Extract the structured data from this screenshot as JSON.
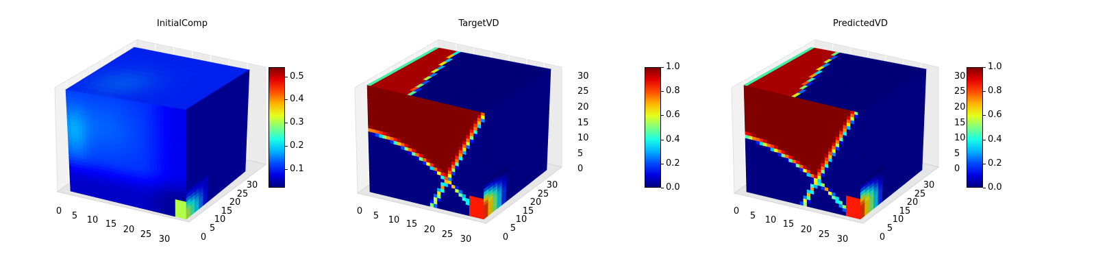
{
  "chart_data": [
    {
      "type": "heatmap",
      "subtype": "3d-voxel",
      "title": "InitialComp",
      "x_ticks": [
        "0",
        "5",
        "10",
        "15",
        "20",
        "25",
        "30"
      ],
      "y_ticks": [
        "0",
        "5",
        "10",
        "15",
        "20",
        "25",
        "30"
      ],
      "z_ticks": [],
      "xlim": [
        0,
        32
      ],
      "ylim": [
        0,
        32
      ],
      "zlim": [
        0,
        32
      ],
      "colormap": "jet",
      "colorbar": {
        "range": [
          0.02,
          0.54
        ],
        "ticks": [
          "0.1",
          "0.2",
          "0.3",
          "0.4",
          "0.5"
        ]
      },
      "pattern": "initial"
    },
    {
      "type": "heatmap",
      "subtype": "3d-voxel",
      "title": "TargetVD",
      "x_ticks": [
        "0",
        "5",
        "10",
        "15",
        "20",
        "25",
        "30"
      ],
      "y_ticks": [
        "0",
        "5",
        "10",
        "15",
        "20",
        "25",
        "30"
      ],
      "z_ticks": [
        "0",
        "5",
        "10",
        "15",
        "20",
        "25",
        "30"
      ],
      "xlim": [
        0,
        32
      ],
      "ylim": [
        0,
        32
      ],
      "zlim": [
        0,
        32
      ],
      "colormap": "jet",
      "colorbar": {
        "range": [
          0.0,
          1.0
        ],
        "ticks": [
          "0.0",
          "0.2",
          "0.4",
          "0.6",
          "0.8",
          "1.0"
        ]
      },
      "pattern": "target"
    },
    {
      "type": "heatmap",
      "subtype": "3d-voxel",
      "title": "PredictedVD",
      "x_ticks": [
        "0",
        "5",
        "10",
        "15",
        "20",
        "25",
        "30"
      ],
      "y_ticks": [
        "0",
        "5",
        "10",
        "15",
        "20",
        "25",
        "30"
      ],
      "z_ticks": [
        "0",
        "5",
        "10",
        "15",
        "20",
        "25",
        "30"
      ],
      "xlim": [
        0,
        32
      ],
      "ylim": [
        0,
        32
      ],
      "zlim": [
        0,
        32
      ],
      "colormap": "jet",
      "colorbar": {
        "range": [
          0.0,
          1.0
        ],
        "ticks": [
          "0.0",
          "0.2",
          "0.4",
          "0.6",
          "0.8",
          "1.0"
        ]
      },
      "pattern": "predicted"
    }
  ]
}
